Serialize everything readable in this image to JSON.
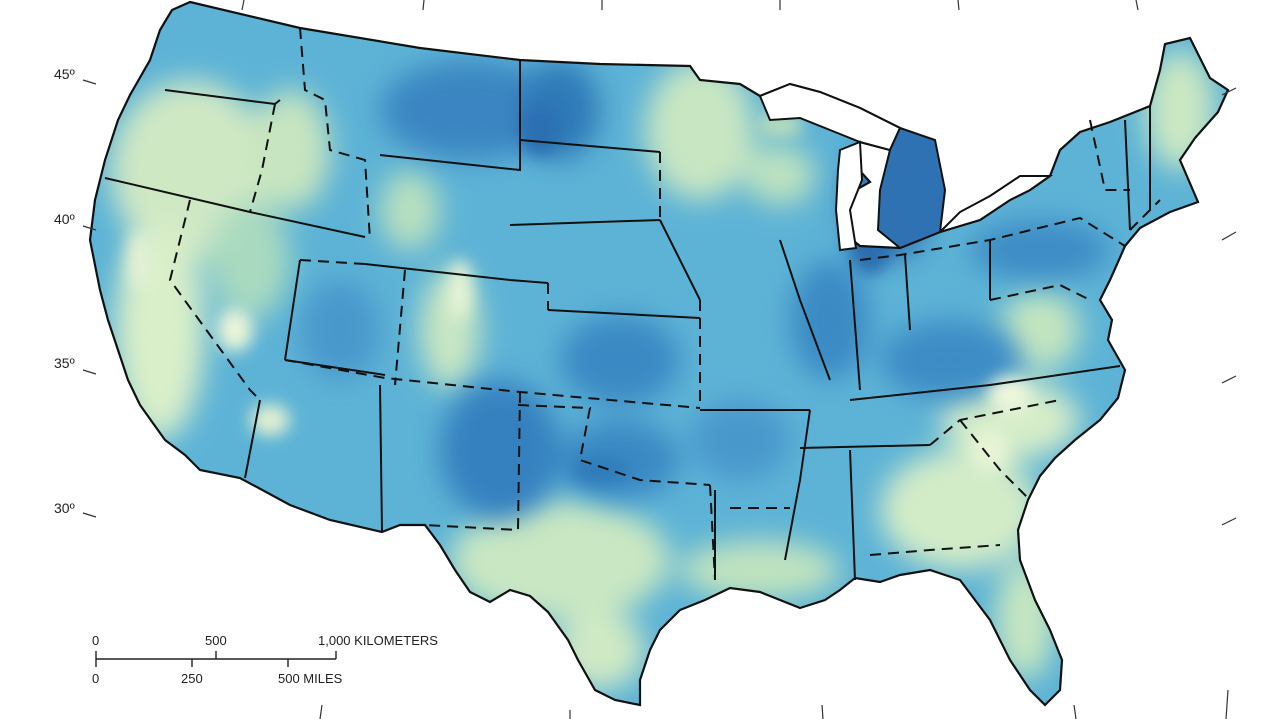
{
  "latitude_labels": {
    "lat_45": "45º",
    "lat_40": "40º",
    "lat_35": "35º",
    "lat_30": "30º"
  },
  "scale_bar": {
    "km_labels": [
      "0",
      "500",
      "1,000 KILOMETERS"
    ],
    "mile_labels": [
      "0",
      "250",
      "500 MILES"
    ]
  },
  "colors": {
    "high_value": "#2c6fb5",
    "mid_value": "#4aa4d3",
    "low_value": "#d8ecc8",
    "boundary": "#111111"
  }
}
